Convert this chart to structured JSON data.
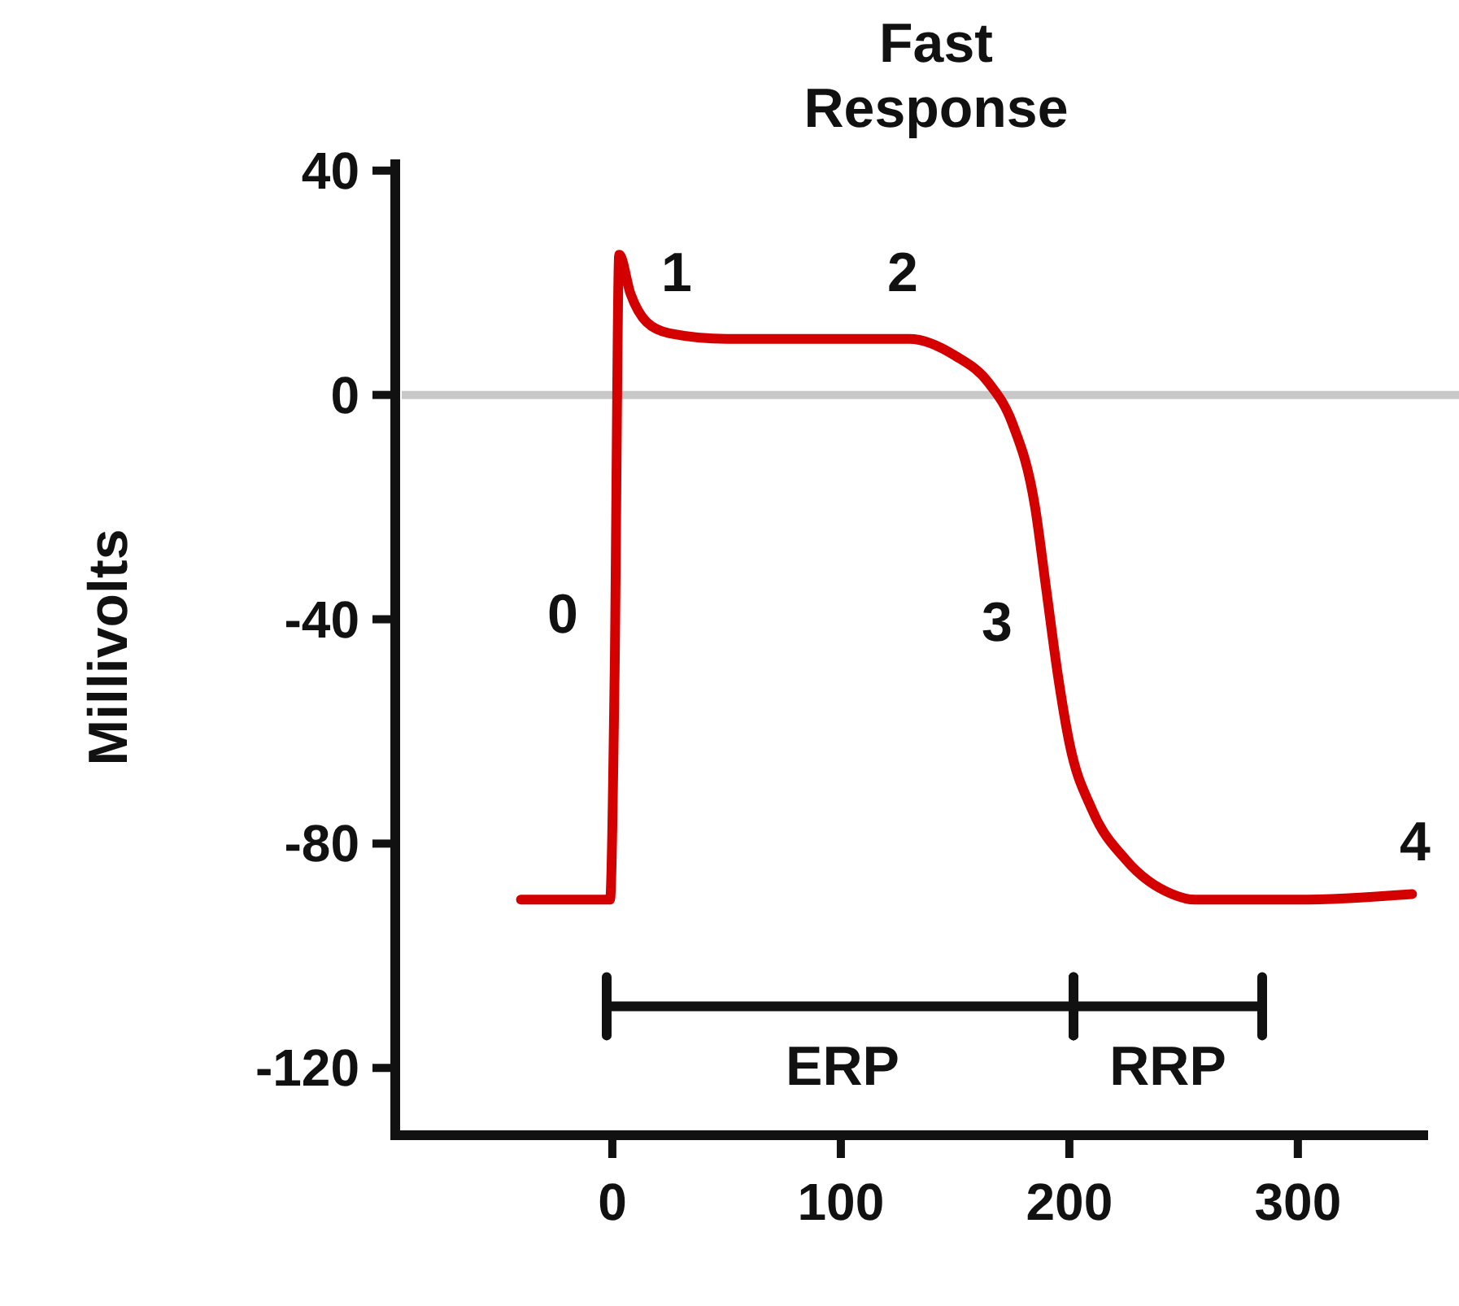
{
  "chart_data": {
    "type": "line",
    "title": "Fast Response",
    "ylabel": "Millivolts",
    "x": [
      -40,
      -1,
      1,
      3,
      8,
      15,
      25,
      50,
      100,
      130,
      150,
      165,
      175,
      185,
      190,
      195,
      200,
      210,
      225,
      245,
      255,
      300,
      350
    ],
    "series": [
      {
        "color": "#d40000",
        "values": [
          -90,
          -90,
          -50,
          25,
          18,
          13,
          11,
          10,
          10,
          10,
          7,
          2,
          -5,
          -20,
          -35,
          -50,
          -62,
          -74,
          -83,
          -89,
          -90,
          -90,
          -89
        ]
      }
    ],
    "xlim": [
      -95,
      357
    ],
    "ylim": [
      -132,
      42
    ],
    "xticks": [
      0,
      100,
      200,
      300
    ],
    "yticks": [
      40,
      0,
      -40,
      -80,
      -120
    ],
    "marker": "none",
    "line_style": "solid",
    "ref_lines": [
      {
        "axis": "y",
        "value": 0,
        "color": "#c8c8c8"
      }
    ],
    "annotations": [
      "0",
      "1",
      "2",
      "3",
      "4",
      "ERP",
      "RRP"
    ]
  }
}
